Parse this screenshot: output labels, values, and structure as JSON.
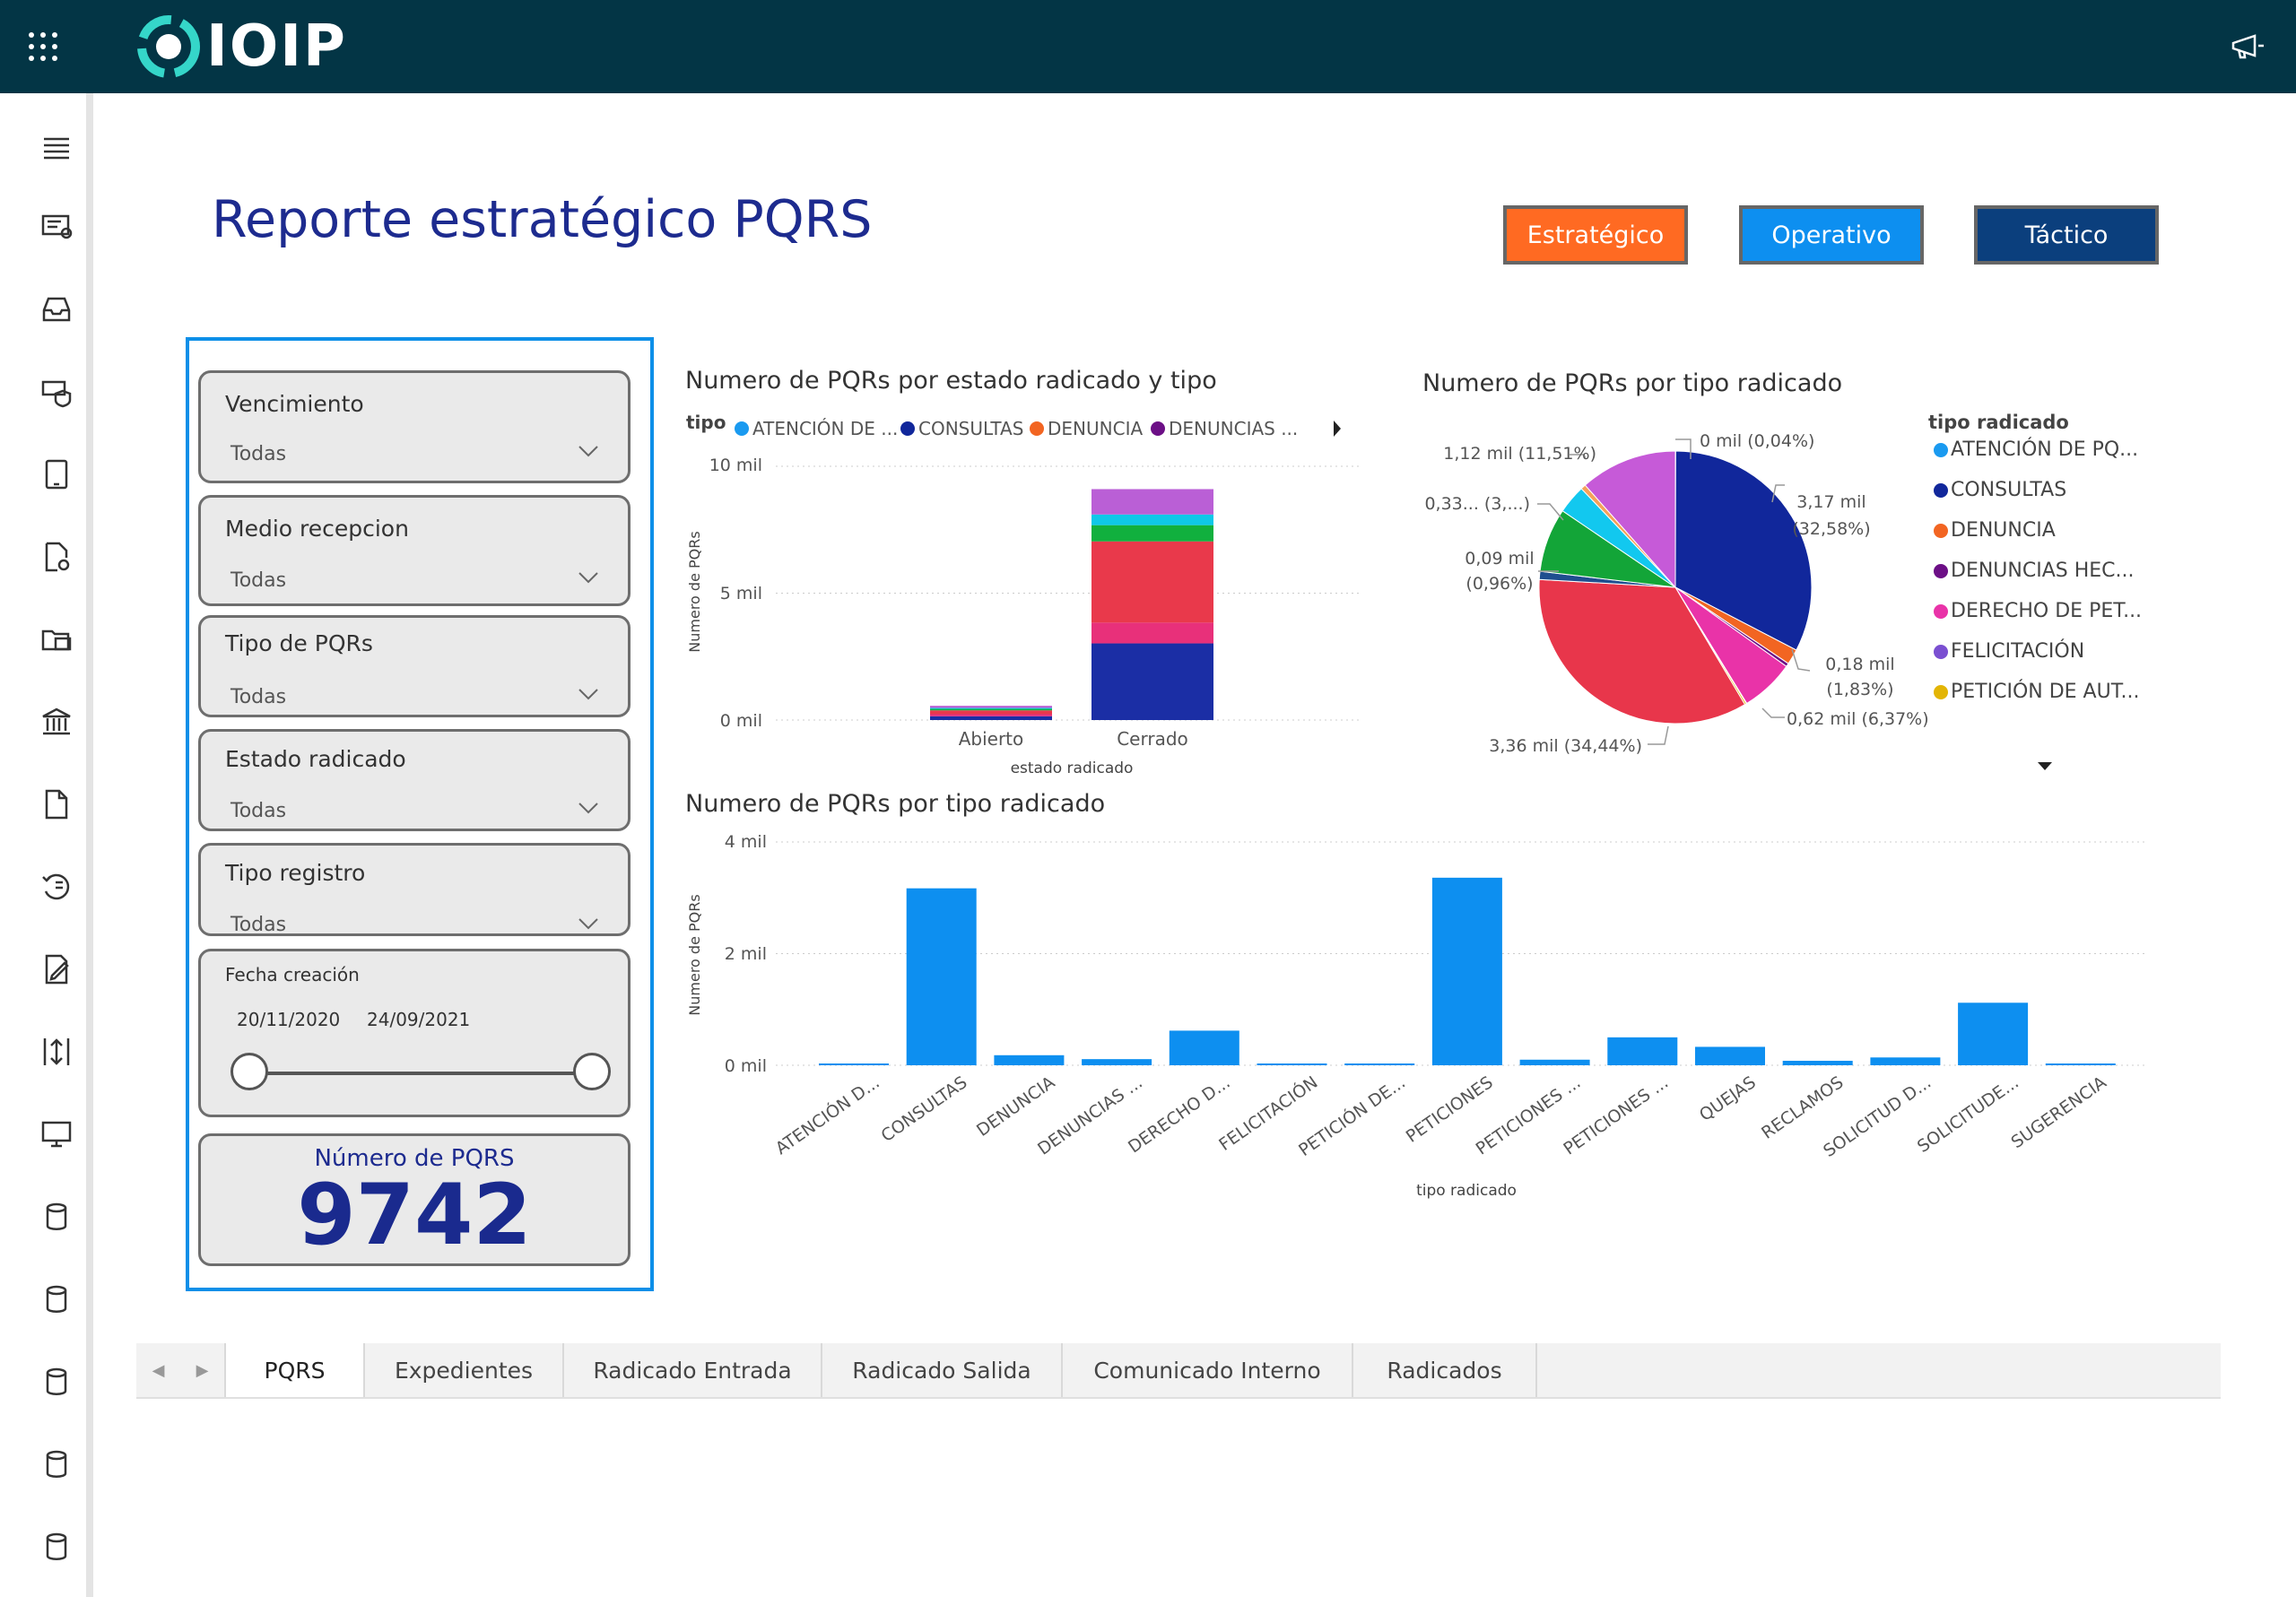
{
  "app": {
    "logo_text": "IOIP"
  },
  "header": {
    "title": "Reporte estratégico PQRS"
  },
  "nav_buttons": [
    {
      "label": "Estratégico",
      "color": "#ff6a22"
    },
    {
      "label": "Operativo",
      "color": "#0d8ff0"
    },
    {
      "label": "Táctico",
      "color": "#0b3f7d"
    }
  ],
  "sidebar_icons": [
    "menu-icon",
    "dashboard-icon",
    "inbox-icon",
    "shield-icon",
    "tablet-icon",
    "document-settings-icon",
    "folder-image-icon",
    "bank-icon",
    "document-copy-icon",
    "history-icon",
    "edit-document-icon",
    "resize-icon",
    "monitor-icon",
    "database-icon",
    "database-icon",
    "database-icon",
    "database-icon",
    "database-icon"
  ],
  "filters": {
    "vencimiento": {
      "label": "Vencimiento",
      "value": "Todas"
    },
    "medio": {
      "label": "Medio recepcion",
      "value": "Todas"
    },
    "tipo_pqr": {
      "label": "Tipo de PQRs",
      "value": "Todas"
    },
    "estado": {
      "label": "Estado radicado",
      "value": "Todas"
    },
    "tipo_registro": {
      "label": "Tipo registro",
      "value": "Todas"
    },
    "fecha": {
      "label": "Fecha creación",
      "start": "20/11/2020",
      "end": "24/09/2021"
    }
  },
  "kpi": {
    "label": "Número de PQRS",
    "value": "9742"
  },
  "chart_data": [
    {
      "type": "bar",
      "stacked": true,
      "title": "Numero de PQRs por estado radicado y tipo",
      "xlabel": "estado radicado",
      "ylabel": "Numero de PQRs",
      "legend_title": "tipo",
      "legend": [
        "ATENCIÓN DE ...",
        "CONSULTAS",
        "DENUNCIA",
        "DENUNCIAS ..."
      ],
      "categories": [
        "Abierto",
        "Cerrado"
      ],
      "ylim": [
        0,
        10000
      ],
      "yticks": [
        "0 mil",
        "5 mil",
        "10 mil"
      ],
      "series": [
        {
          "color": "#1b2ea5",
          "values": [
            150,
            3020
          ]
        },
        {
          "color": "#e8307a",
          "values": [
            80,
            820
          ]
        },
        {
          "color": "#e9394b",
          "values": [
            150,
            3200
          ]
        },
        {
          "color": "#11b03e",
          "values": [
            60,
            640
          ]
        },
        {
          "color": "#0fc8e8",
          "values": [
            40,
            420
          ]
        },
        {
          "color": "#ba5fd6",
          "values": [
            80,
            1000
          ]
        }
      ]
    },
    {
      "type": "pie",
      "title": "Numero de PQRs por tipo radicado",
      "legend_title": "tipo radicado",
      "legend": [
        {
          "label": "ATENCIÓN DE PQ...",
          "color": "#1a9af0"
        },
        {
          "label": "CONSULTAS",
          "color": "#11279b"
        },
        {
          "label": "DENUNCIA",
          "color": "#f26522"
        },
        {
          "label": "DENUNCIAS HEC...",
          "color": "#6c0f86"
        },
        {
          "label": "DERECHO DE PET...",
          "color": "#e933a8"
        },
        {
          "label": "FELICITACIÓN",
          "color": "#7a4fd1"
        },
        {
          "label": "PETICIÓN DE AUT...",
          "color": "#e3b505"
        }
      ],
      "slices": [
        {
          "value": 0.04,
          "color": "#1a9af0"
        },
        {
          "value": 32.58,
          "color": "#11279b"
        },
        {
          "value": 1.83,
          "color": "#f26522"
        },
        {
          "value": 0.4,
          "color": "#6c0f86"
        },
        {
          "value": 6.37,
          "color": "#e933a8"
        },
        {
          "value": 0.06,
          "color": "#7a4fd1"
        },
        {
          "value": 0.2,
          "color": "#e3b505"
        },
        {
          "value": 34.44,
          "color": "#e8364b"
        },
        {
          "value": 0.96,
          "color": "#1f4e8f"
        },
        {
          "value": 7.6,
          "color": "#13a538"
        },
        {
          "value": 3.41,
          "color": "#12c8ef"
        },
        {
          "value": 0.6,
          "color": "#f5a15a"
        },
        {
          "value": 11.51,
          "color": "#c65ad8"
        }
      ],
      "labels": [
        "0 mil (0,04%)",
        "3,17 mil",
        "(32,58%)",
        "0,18 mil",
        "(1,83%)",
        "0,62 mil (6,37%)",
        "3,36 mil (34,44%)",
        "0,09 mil",
        "(0,96%)",
        "0,33... (3,...)",
        "1,12 mil (11,51%)"
      ]
    },
    {
      "type": "bar",
      "title": "Numero de PQRs por tipo radicado",
      "xlabel": "tipo radicado",
      "ylabel": "Numero de PQRs",
      "color": "#0d8ff0",
      "ylim": [
        0,
        4000
      ],
      "yticks": [
        "0 mil",
        "2 mil",
        "4 mil"
      ],
      "categories": [
        "ATENCIÓN D...",
        "CONSULTAS",
        "DENUNCIA",
        "DENUNCIAS ...",
        "DERECHO D...",
        "FELICITACIÓN",
        "PETICIÓN DE...",
        "PETICIONES",
        "PETICIONES ...",
        "PETICIONES ...",
        "QUEJAS",
        "RECLAMOS",
        "SOLICITUD D...",
        "SOLICITUDE...",
        "SUGERENCIA"
      ],
      "values": [
        30,
        3170,
        180,
        110,
        620,
        20,
        30,
        3360,
        100,
        500,
        330,
        80,
        140,
        1120,
        20
      ]
    }
  ],
  "tabs": [
    "PQRS",
    "Expedientes",
    "Radicado Entrada",
    "Radicado Salida",
    "Comunicado Interno",
    "Radicados"
  ]
}
